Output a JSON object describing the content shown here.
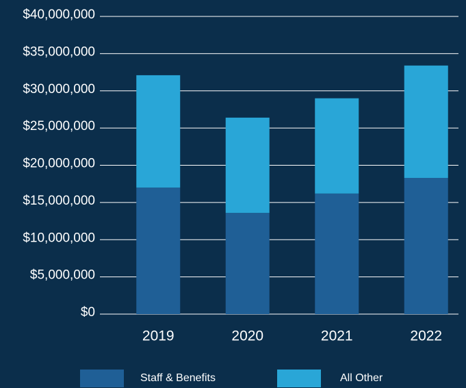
{
  "chart_data": {
    "type": "stacked_bar",
    "categories": [
      "2019",
      "2020",
      "2021",
      "2022"
    ],
    "series": [
      {
        "name": "Staff & Benefits",
        "color": "#1f5f96",
        "values": [
          17.0,
          13.6,
          16.2,
          18.3
        ]
      },
      {
        "name": "All Other",
        "color": "#29a6d7",
        "values": [
          15.1,
          12.8,
          12.8,
          15.1
        ]
      }
    ],
    "ylim": [
      0,
      40
    ],
    "yticks": [
      {
        "value": 0,
        "label": "$0"
      },
      {
        "value": 5,
        "label": "$5,000,000"
      },
      {
        "value": 10,
        "label": "$10,000,000"
      },
      {
        "value": 15,
        "label": "$15,000,000"
      },
      {
        "value": 20,
        "label": "$20,000,000"
      },
      {
        "value": 25,
        "label": "$25,000,000"
      },
      {
        "value": 30,
        "label": "$30,000,000"
      },
      {
        "value": 35,
        "label": "$35,000,000"
      },
      {
        "value": 40,
        "label": "$40,000,000"
      }
    ],
    "grid": true
  }
}
